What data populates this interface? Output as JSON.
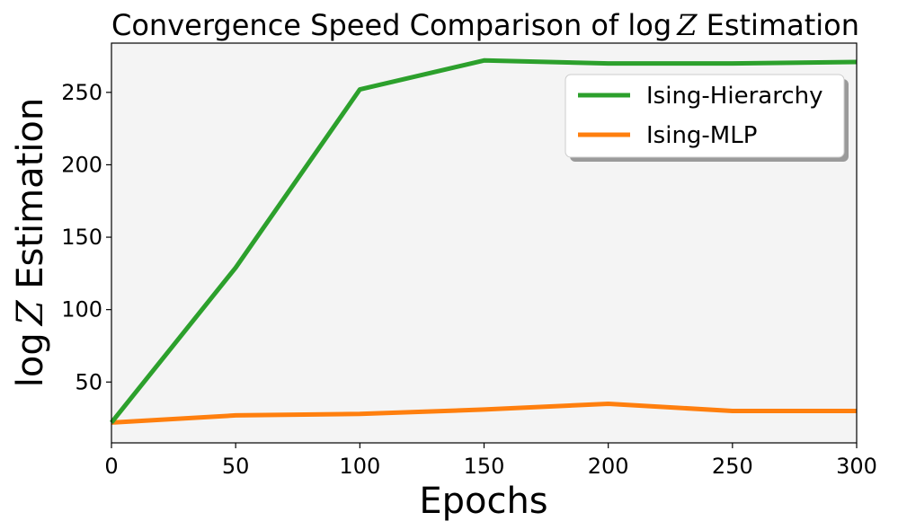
{
  "chart_data": {
    "type": "line",
    "title": {
      "prefix": "Convergence Speed Comparison of log",
      "variable": "Z",
      "suffix": " Estimation"
    },
    "xlabel": "Epochs",
    "ylabel": {
      "prefix": "log",
      "variable": "Z",
      "suffix": " Estimation"
    },
    "xlim": [
      0,
      300
    ],
    "ylim": [
      8,
      284
    ],
    "xticks": [
      0,
      50,
      100,
      150,
      200,
      250,
      300
    ],
    "yticks": [
      50,
      100,
      150,
      200,
      250
    ],
    "grid": false,
    "legend_position": "top-right",
    "background_color": "#f4f4f4",
    "x": [
      0,
      50,
      100,
      150,
      200,
      250,
      300
    ],
    "series": [
      {
        "name": "Ising-Hierarchy",
        "color": "#2ca02c",
        "values": [
          22,
          129,
          252,
          272,
          270,
          270,
          271
        ]
      },
      {
        "name": "Ising-MLP",
        "color": "#ff7f0e",
        "values": [
          22,
          27,
          28,
          31,
          35,
          30,
          30
        ]
      }
    ]
  }
}
